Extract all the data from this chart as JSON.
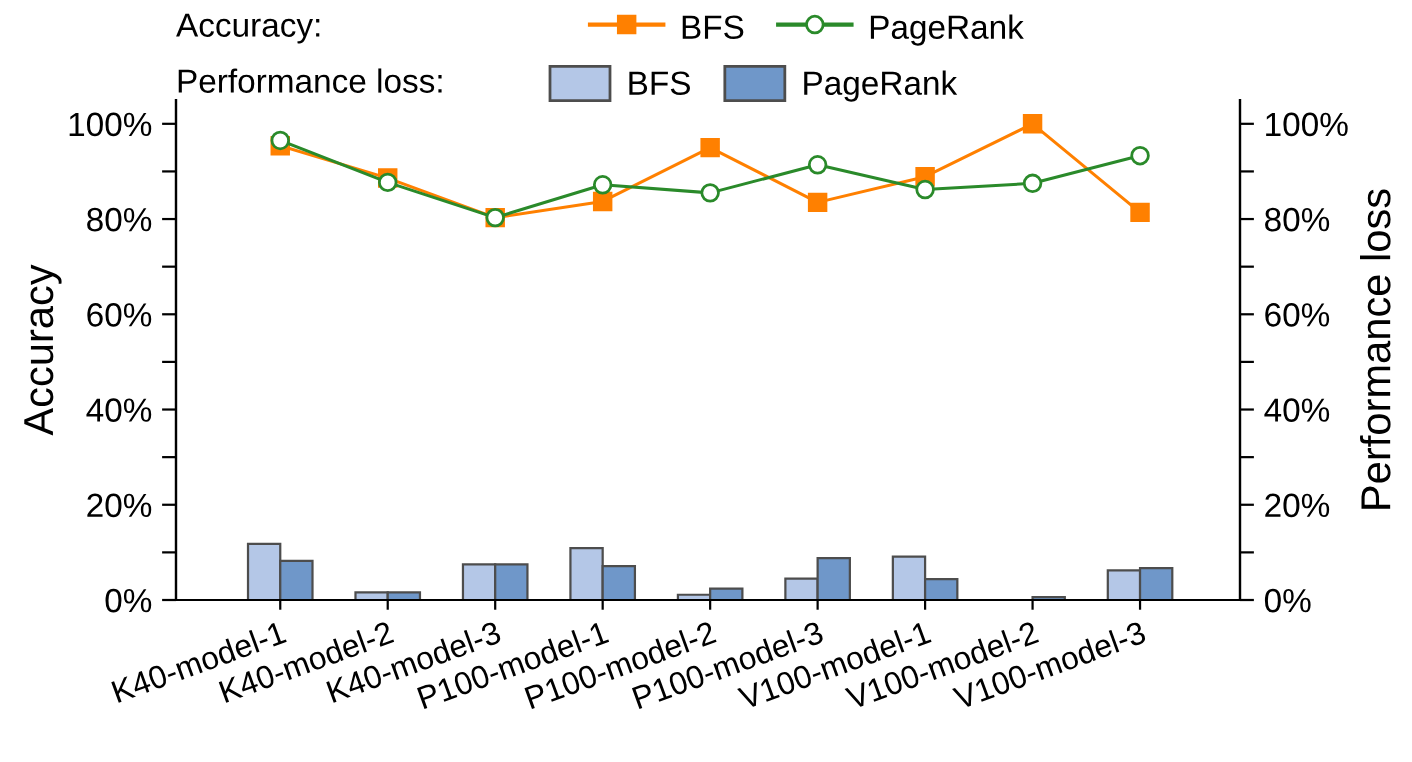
{
  "chart_data": {
    "type": "bar",
    "ylabel": "Accuracy",
    "y2label": "Performance loss",
    "legend": "top",
    "annotations": [
      "Accuracy:",
      "Performance loss:"
    ],
    "categories": [
      "K40-model-1",
      "K40-model-2",
      "K40-model-3",
      "P100-model-1",
      "P100-model-2",
      "P100-model-3",
      "V100-model-1",
      "V100-model-2",
      "V100-model-3"
    ],
    "ylim": [
      0,
      105
    ],
    "y2lim": [
      0,
      105
    ],
    "yticks": [
      {
        "value": 0,
        "label": "0%"
      },
      {
        "value": 10,
        "label": null
      },
      {
        "value": 20,
        "label": "20%"
      },
      {
        "value": 30,
        "label": null
      },
      {
        "value": 40,
        "label": "40%"
      },
      {
        "value": 50,
        "label": null
      },
      {
        "value": 60,
        "label": "60%"
      },
      {
        "value": 70,
        "label": null
      },
      {
        "value": 80,
        "label": "80%"
      },
      {
        "value": 90,
        "label": null
      },
      {
        "value": 100,
        "label": "100%"
      }
    ],
    "y2ticks": [
      {
        "value": 0,
        "label": "0%"
      },
      {
        "value": 10,
        "label": null
      },
      {
        "value": 20,
        "label": "20%"
      },
      {
        "value": 30,
        "label": null
      },
      {
        "value": 40,
        "label": "40%"
      },
      {
        "value": 50,
        "label": null
      },
      {
        "value": 60,
        "label": "60%"
      },
      {
        "value": 70,
        "label": null
      },
      {
        "value": 80,
        "label": "80%"
      },
      {
        "value": 90,
        "label": null
      },
      {
        "value": 100,
        "label": "100%"
      }
    ],
    "series": [
      {
        "name": "BFS",
        "type": "line",
        "color": "#ff8000",
        "marker": "square",
        "values": [
          95.4,
          88.6,
          80.3,
          83.7,
          95.0,
          83.5,
          88.9,
          100,
          81.4
        ]
      },
      {
        "name": "PageRank",
        "type": "line",
        "color": "#2a8a2a",
        "marker": "circle",
        "values": [
          96.5,
          87.7,
          80.3,
          87.2,
          85.5,
          91.4,
          86.2,
          87.5,
          93.3
        ]
      },
      {
        "name": "BFS",
        "color": "#b4c7e7",
        "values": [
          11.8,
          1.6,
          7.5,
          10.9,
          1.1,
          4.5,
          9.1,
          null,
          6.2
        ]
      },
      {
        "name": "PageRank",
        "color": "#6f97c9",
        "values": [
          8.2,
          1.6,
          7.5,
          7.1,
          2.4,
          8.8,
          4.4,
          0.6,
          6.7
        ]
      }
    ]
  }
}
